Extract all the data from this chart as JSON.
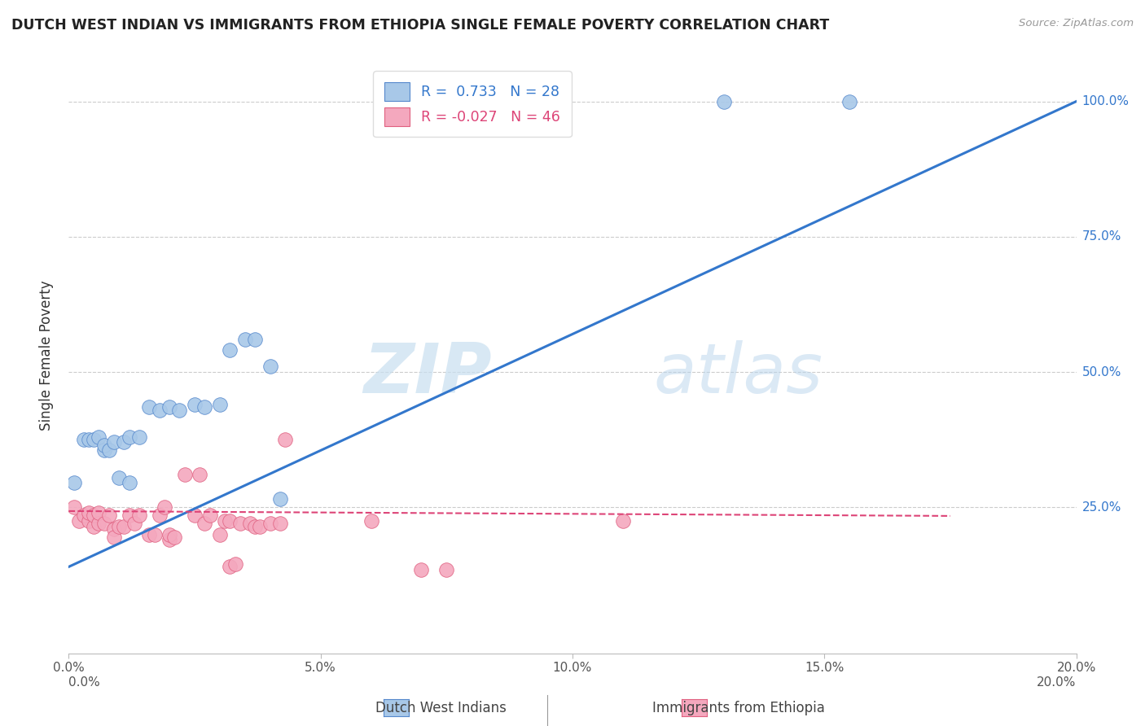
{
  "title": "DUTCH WEST INDIAN VS IMMIGRANTS FROM ETHIOPIA SINGLE FEMALE POVERTY CORRELATION CHART",
  "source": "Source: ZipAtlas.com",
  "ylabel": "Single Female Poverty",
  "ytick_labels": [
    "100.0%",
    "75.0%",
    "50.0%",
    "25.0%"
  ],
  "ytick_positions": [
    1.0,
    0.75,
    0.5,
    0.25
  ],
  "legend_label1": "Dutch West Indians",
  "legend_label2": "Immigrants from Ethiopia",
  "legend_r1": "R =  0.733",
  "legend_n1": "N = 28",
  "legend_r2": "R = -0.027",
  "legend_n2": "N = 46",
  "color_blue": "#a8c8e8",
  "color_pink": "#f4a8be",
  "color_blue_dark": "#5588cc",
  "color_pink_dark": "#e06080",
  "color_blue_line": "#3377cc",
  "color_pink_line": "#dd4477",
  "watermark_zip": "ZIP",
  "watermark_atlas": "atlas",
  "blue_scatter_x": [
    0.001,
    0.003,
    0.004,
    0.005,
    0.006,
    0.007,
    0.007,
    0.008,
    0.009,
    0.01,
    0.011,
    0.012,
    0.012,
    0.014,
    0.016,
    0.018,
    0.02,
    0.022,
    0.025,
    0.027,
    0.03,
    0.032,
    0.035,
    0.037,
    0.04,
    0.042,
    0.13,
    0.155
  ],
  "blue_scatter_y": [
    0.295,
    0.375,
    0.375,
    0.375,
    0.38,
    0.355,
    0.365,
    0.355,
    0.37,
    0.305,
    0.37,
    0.38,
    0.295,
    0.38,
    0.435,
    0.43,
    0.435,
    0.43,
    0.44,
    0.435,
    0.44,
    0.54,
    0.56,
    0.56,
    0.51,
    0.265,
    1.0,
    1.0
  ],
  "pink_scatter_x": [
    0.001,
    0.002,
    0.003,
    0.004,
    0.004,
    0.005,
    0.005,
    0.006,
    0.006,
    0.007,
    0.008,
    0.009,
    0.009,
    0.01,
    0.011,
    0.012,
    0.013,
    0.014,
    0.016,
    0.017,
    0.018,
    0.019,
    0.02,
    0.02,
    0.021,
    0.023,
    0.025,
    0.026,
    0.027,
    0.028,
    0.03,
    0.031,
    0.032,
    0.032,
    0.033,
    0.034,
    0.036,
    0.037,
    0.038,
    0.04,
    0.042,
    0.043,
    0.06,
    0.07,
    0.075,
    0.11
  ],
  "pink_scatter_y": [
    0.25,
    0.225,
    0.235,
    0.225,
    0.24,
    0.215,
    0.235,
    0.22,
    0.24,
    0.22,
    0.235,
    0.21,
    0.195,
    0.215,
    0.215,
    0.235,
    0.22,
    0.235,
    0.2,
    0.2,
    0.235,
    0.25,
    0.19,
    0.2,
    0.195,
    0.31,
    0.235,
    0.31,
    0.22,
    0.235,
    0.2,
    0.225,
    0.225,
    0.14,
    0.145,
    0.22,
    0.22,
    0.215,
    0.215,
    0.22,
    0.22,
    0.375,
    0.225,
    0.135,
    0.135,
    0.225
  ],
  "blue_line_x": [
    0.0,
    0.2
  ],
  "blue_line_y": [
    0.14,
    1.0
  ],
  "pink_line_x": [
    0.0,
    0.175
  ],
  "pink_line_y": [
    0.243,
    0.234
  ],
  "xlim": [
    0.0,
    0.2
  ],
  "ylim": [
    -0.02,
    1.08
  ],
  "xtick_positions": [
    0.0,
    0.05,
    0.1,
    0.15,
    0.2
  ],
  "xtick_labels": [
    "0.0%",
    "5.0%",
    "10.0%",
    "15.0%",
    "20.0%"
  ]
}
